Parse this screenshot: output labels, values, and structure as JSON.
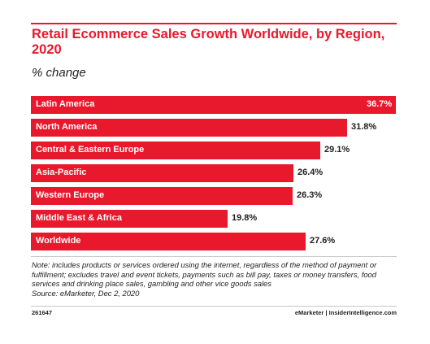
{
  "chart_data": {
    "type": "bar",
    "orientation": "horizontal",
    "title": "Retail Ecommerce Sales Growth Worldwide, by Region, 2020",
    "subtitle": "% change",
    "categories": [
      "Latin America",
      "North America",
      "Central & Eastern Europe",
      "Asia-Pacific",
      "Western Europe",
      "Middle East & Africa",
      "Worldwide"
    ],
    "values": [
      36.7,
      31.8,
      29.1,
      26.4,
      26.3,
      19.8,
      27.6
    ],
    "value_labels": [
      "36.7%",
      "31.8%",
      "29.1%",
      "26.4%",
      "26.3%",
      "19.8%",
      "27.6%"
    ],
    "xlim": [
      0,
      36.7
    ],
    "grid": false,
    "bar_color": "#e8192c"
  },
  "note": "Note: includes products or services ordered using the internet, regardless of the method of payment or fulfillment; excludes travel and event tickets, payments such as bill pay, taxes or money transfers, food services and drinking place sales, gambling and other vice goods sales",
  "source": "Source: eMarketer, Dec 2, 2020",
  "footer": {
    "id": "261647",
    "brand": "eMarketer",
    "separator": "|",
    "site": "InsiderIntelligence.com"
  },
  "colors": {
    "accent": "#e8192c",
    "text": "#222222"
  }
}
